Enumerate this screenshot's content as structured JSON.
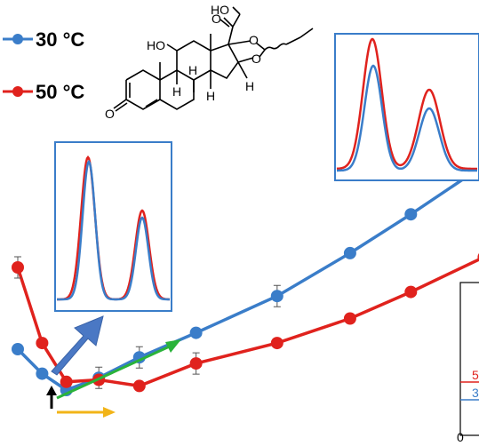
{
  "chart_data": {
    "type": "line",
    "title": "",
    "xlabel": "",
    "ylabel": "",
    "grid": false,
    "legend_placement": "top-left",
    "series": [
      {
        "name": "30 °C",
        "color": "#3a7dc9",
        "points": [
          [
            0.0,
            3.0
          ],
          [
            0.6,
            1.8
          ],
          [
            1.2,
            1.0
          ],
          [
            2.0,
            1.6
          ],
          [
            3.0,
            2.6
          ],
          [
            4.4,
            3.8
          ],
          [
            6.4,
            5.6
          ],
          [
            8.2,
            7.7
          ],
          [
            9.7,
            9.6
          ],
          [
            11.5,
            12.0
          ]
        ]
      },
      {
        "name": "50 °C",
        "color": "#e0221d",
        "points": [
          [
            0.0,
            7.0
          ],
          [
            0.6,
            3.3
          ],
          [
            1.2,
            1.4
          ],
          [
            2.0,
            1.5
          ],
          [
            3.0,
            1.2
          ],
          [
            4.4,
            2.3
          ],
          [
            6.4,
            3.3
          ],
          [
            8.2,
            4.5
          ],
          [
            9.7,
            5.8
          ],
          [
            11.5,
            7.5
          ]
        ]
      }
    ],
    "error_bar_labels": [],
    "insets": [
      {
        "name": "left-chromatogram",
        "peaks": [
          "major",
          "minor"
        ]
      },
      {
        "name": "right-chromatogram",
        "peaks": [
          "major",
          "minor"
        ]
      }
    ]
  },
  "legend": [
    {
      "label": "30 °C",
      "color": "#3a7dc9"
    },
    {
      "label": "50 °C",
      "color": "#e0221d"
    }
  ],
  "molecule": {
    "labels": [
      "HO",
      "HO",
      "O",
      "O",
      "O",
      "O",
      "H",
      "H",
      "H",
      "H"
    ]
  },
  "cut_off_panel": {
    "tick_label": "0",
    "partial_text_red": "5",
    "partial_text_blue": "3"
  },
  "arrows": [
    {
      "name": "big-blue-arrow",
      "color": "#4a78c4"
    },
    {
      "name": "green-arrow",
      "color": "#2ab33a"
    },
    {
      "name": "orange-arrow",
      "color": "#f2b418"
    },
    {
      "name": "black-arrow",
      "color": "#000000"
    }
  ]
}
